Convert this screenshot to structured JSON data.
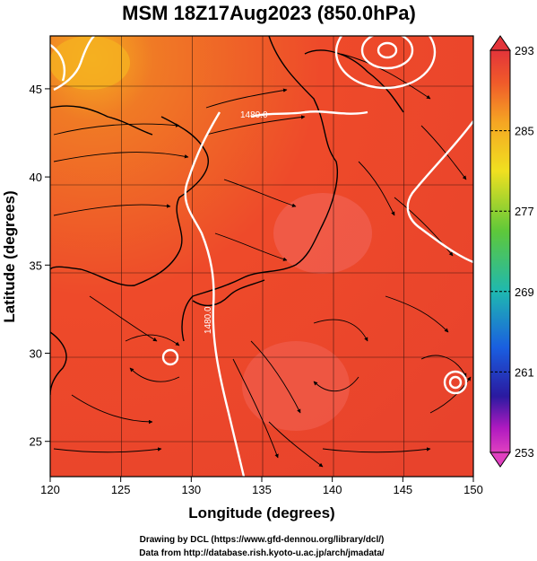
{
  "title": "MSM 18Z17Aug2023 (850.0hPa)",
  "xlabel": "Longitude (degrees)",
  "ylabel": "Latitude  (degrees)",
  "credits": [
    "Drawing by DCL (https://www.gfd-dennou.org/library/dcl/)",
    "Data from http://database.rish.kyoto-u.ac.jp/arch/jmadata/"
  ],
  "colorbar": {
    "ticks": [
      293,
      285,
      277,
      269,
      261,
      253
    ],
    "colors": [
      "#e3343a",
      "#f05a2a",
      "#f5a623",
      "#f0e020",
      "#5ec83a",
      "#1fb8b0",
      "#1a5ee0",
      "#2a1aa0",
      "#b01ac0",
      "#e040c0"
    ]
  },
  "map": {
    "xlim": [
      120,
      150
    ],
    "ylim": [
      23,
      48
    ],
    "xticks": [
      120,
      125,
      130,
      135,
      140,
      145,
      150
    ],
    "yticks": [
      25,
      30,
      35,
      40,
      45
    ],
    "contour_labels": [
      "1480.0",
      "1480.0"
    ],
    "field_color": "#ee4a2a",
    "contour_color": "#ffffff"
  }
}
